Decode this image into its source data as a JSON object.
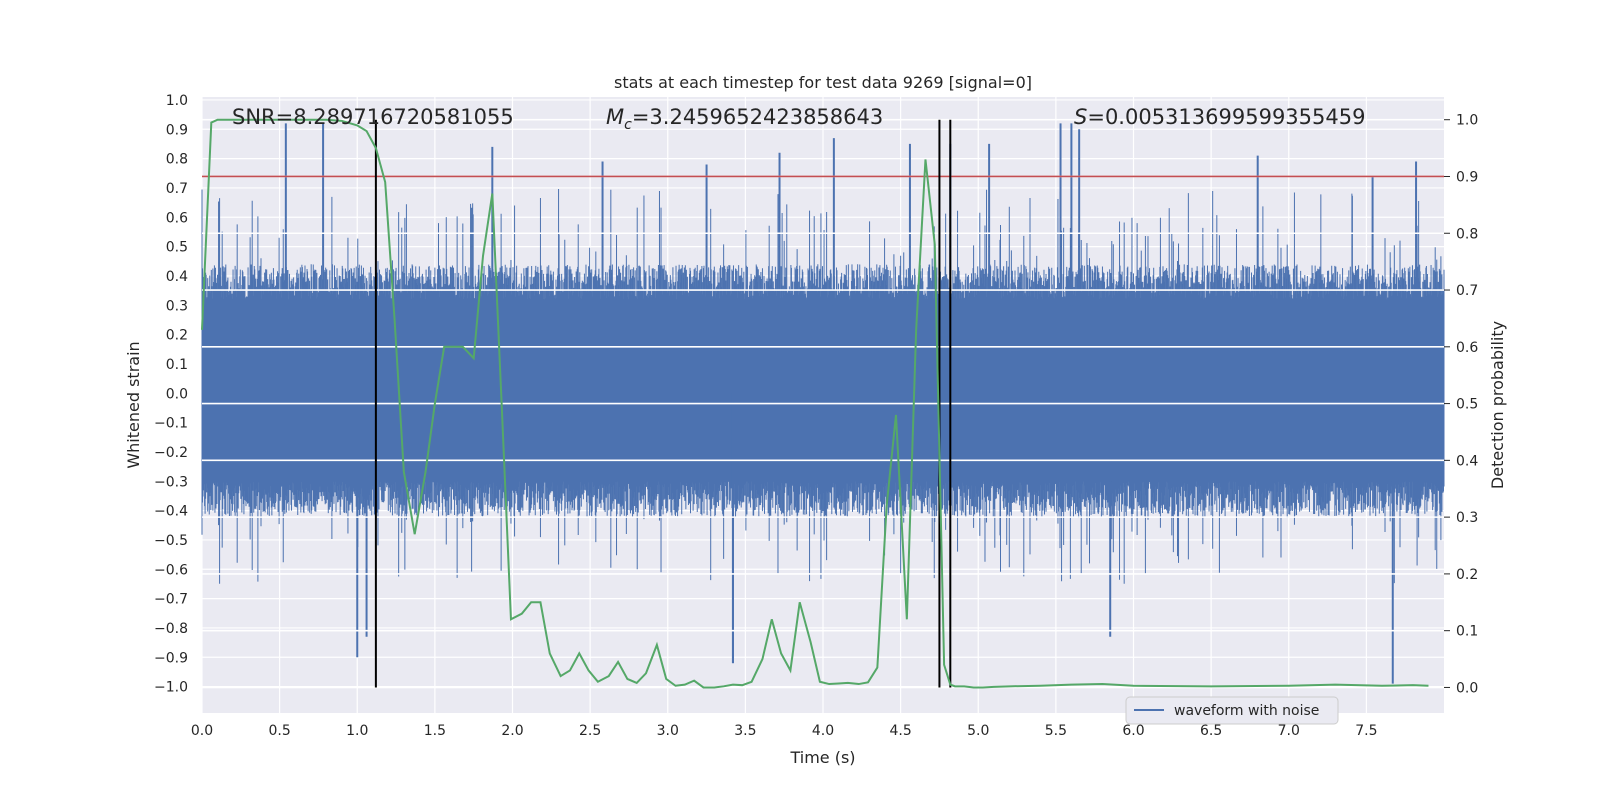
{
  "chart_data": {
    "type": "line",
    "title": "stats at each timestep for test data 9269 [signal=0]",
    "xlabel": "Time (s)",
    "ylabel_left": "Whitened strain",
    "ylabel_right": "Detection probability",
    "xlim": [
      0.0,
      8.0
    ],
    "ylim_left": [
      -1.09,
      1.01
    ],
    "ylim_right": [
      -0.045,
      1.04
    ],
    "x_ticks": [
      "0.0",
      "0.5",
      "1.0",
      "1.5",
      "2.0",
      "2.5",
      "3.0",
      "3.5",
      "4.0",
      "4.5",
      "5.0",
      "5.5",
      "6.0",
      "6.5",
      "7.0",
      "7.5"
    ],
    "x_tick_values": [
      0.0,
      0.5,
      1.0,
      1.5,
      2.0,
      2.5,
      3.0,
      3.5,
      4.0,
      4.5,
      5.0,
      5.5,
      6.0,
      6.5,
      7.0,
      7.5
    ],
    "y_ticks_left": [
      "1.0",
      "0.9",
      "0.8",
      "0.7",
      "0.6",
      "0.5",
      "0.4",
      "0.3",
      "0.2",
      "0.1",
      "0.0",
      "−0.1",
      "−0.2",
      "−0.3",
      "−0.4",
      "−0.5",
      "−0.6",
      "−0.7",
      "−0.8",
      "−0.9",
      "−1.0"
    ],
    "y_tick_values_left": [
      1.0,
      0.9,
      0.8,
      0.7,
      0.6,
      0.5,
      0.4,
      0.3,
      0.2,
      0.1,
      0.0,
      -0.1,
      -0.2,
      -0.3,
      -0.4,
      -0.5,
      -0.6,
      -0.7,
      -0.8,
      -0.9,
      -1.0
    ],
    "y_ticks_right": [
      "1.0",
      "0.9",
      "0.8",
      "0.7",
      "0.6",
      "0.5",
      "0.4",
      "0.3",
      "0.2",
      "0.1",
      "0.0"
    ],
    "y_tick_values_right": [
      1.0,
      0.9,
      0.8,
      0.7,
      0.6,
      0.5,
      0.4,
      0.3,
      0.2,
      0.1,
      0.0
    ],
    "annotations": {
      "snr": "SNR=8.289716720581055",
      "mc_symbol": "M",
      "mc_sub": "c",
      "mc_value": "=3.2459652423858643",
      "s_symbol": "S",
      "s_value": "=0.005313699599355459"
    },
    "legend": {
      "label": "waveform with noise",
      "placement": "lower-right"
    },
    "threshold": {
      "value": 0.9,
      "axis": "right",
      "color": "#c44e52"
    },
    "vertical_lines": [
      1.12,
      4.75,
      4.82
    ],
    "series": [
      {
        "name": "waveform with noise",
        "axis": "left",
        "color": "#4c72b0",
        "kind": "noise-fill",
        "description_free": true,
        "x_range": [
          0.0,
          8.0
        ],
        "typical_envelope": [
          -0.4,
          0.4
        ],
        "extreme_range": [
          -0.99,
          0.93
        ],
        "spike_times": [
          0.54,
          0.78,
          1.87,
          2.58,
          3.25,
          3.42,
          3.72,
          4.07,
          4.56,
          4.82,
          5.07,
          5.53,
          5.6,
          5.65,
          6.8,
          7.54,
          7.82
        ],
        "spike_values": [
          0.92,
          0.92,
          0.84,
          0.79,
          0.78,
          -0.92,
          0.82,
          0.87,
          0.85,
          0.85,
          0.85,
          0.92,
          0.92,
          0.9,
          0.81,
          0.74,
          0.79
        ],
        "negative_spike_times": [
          1.0,
          1.06,
          3.42,
          5.85,
          7.67
        ],
        "negative_spike_values": [
          -0.9,
          -0.83,
          -0.92,
          -0.83,
          -0.99
        ],
        "mean_band": [
          -0.05,
          0.05
        ]
      },
      {
        "name": "Detection probability",
        "axis": "right",
        "color": "#55a868",
        "x": [
          0.0,
          0.06,
          0.1,
          0.15,
          0.2,
          0.25,
          0.3,
          0.4,
          0.5,
          0.6,
          0.7,
          0.8,
          0.9,
          1.0,
          1.06,
          1.12,
          1.18,
          1.24,
          1.3,
          1.37,
          1.44,
          1.5,
          1.56,
          1.62,
          1.68,
          1.75,
          1.81,
          1.87,
          1.93,
          1.99,
          2.06,
          2.12,
          2.18,
          2.24,
          2.31,
          2.37,
          2.43,
          2.49,
          2.55,
          2.62,
          2.68,
          2.74,
          2.8,
          2.86,
          2.93,
          2.99,
          3.05,
          3.11,
          3.17,
          3.23,
          3.3,
          3.36,
          3.42,
          3.48,
          3.54,
          3.61,
          3.67,
          3.73,
          3.79,
          3.85,
          3.92,
          3.98,
          4.04,
          4.1,
          4.16,
          4.23,
          4.29,
          4.35,
          4.41,
          4.47,
          4.54,
          4.6,
          4.66,
          4.72,
          4.78,
          4.82,
          4.85,
          4.91,
          4.97,
          5.03,
          5.1,
          5.2,
          5.4,
          5.6,
          5.8,
          6.0,
          6.5,
          7.0,
          7.3,
          7.6,
          7.8,
          7.9
        ],
        "values": [
          0.63,
          0.995,
          1.0,
          1.0,
          1.0,
          1.0,
          1.0,
          1.0,
          1.0,
          1.0,
          1.0,
          1.0,
          0.998,
          0.99,
          0.98,
          0.95,
          0.89,
          0.65,
          0.38,
          0.27,
          0.38,
          0.5,
          0.6,
          0.6,
          0.6,
          0.58,
          0.76,
          0.87,
          0.5,
          0.12,
          0.13,
          0.15,
          0.15,
          0.06,
          0.02,
          0.03,
          0.06,
          0.03,
          0.01,
          0.02,
          0.045,
          0.015,
          0.008,
          0.025,
          0.075,
          0.015,
          0.003,
          0.005,
          0.012,
          0.0,
          0.0,
          0.002,
          0.005,
          0.004,
          0.01,
          0.05,
          0.12,
          0.06,
          0.03,
          0.15,
          0.08,
          0.01,
          0.006,
          0.007,
          0.008,
          0.006,
          0.009,
          0.035,
          0.32,
          0.48,
          0.12,
          0.63,
          0.93,
          0.78,
          0.04,
          0.005,
          0.002,
          0.002,
          0.0,
          0.0,
          0.001,
          0.002,
          0.003,
          0.005,
          0.006,
          0.003,
          0.002,
          0.003,
          0.005,
          0.003,
          0.004,
          0.003
        ]
      }
    ]
  }
}
